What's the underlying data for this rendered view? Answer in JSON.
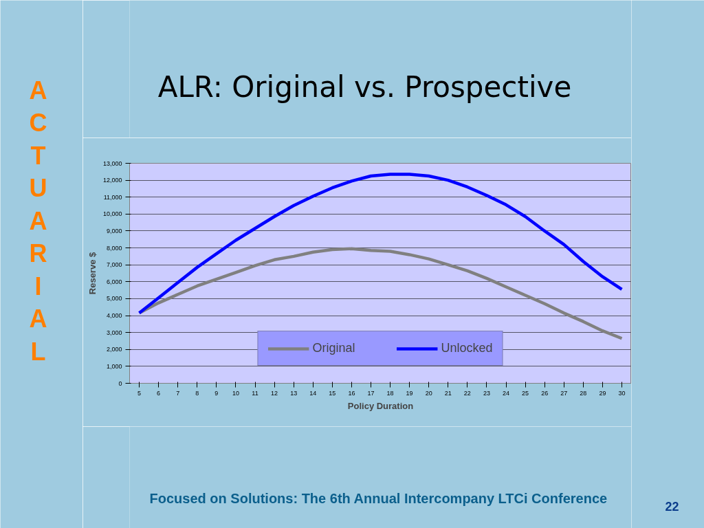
{
  "chart_data": {
    "type": "line",
    "title": "ALR: Original vs. Prospective",
    "xlabel": "Policy Duration",
    "ylabel": "Reserve $",
    "annotations": [
      "ACTUARIAL",
      "Focused on Solutions:  The 6th Annual Intercompany LTCi Conference",
      "22"
    ],
    "categories": [
      "5",
      "6",
      "7",
      "8",
      "9",
      "10",
      "11",
      "12",
      "13",
      "14",
      "15",
      "16",
      "17",
      "18",
      "19",
      "20",
      "21",
      "22",
      "23",
      "24",
      "25",
      "26",
      "27",
      "28",
      "29",
      "30"
    ],
    "series": [
      {
        "name": "Original",
        "color": "#808080",
        "values": [
          4150,
          4750,
          5250,
          5750,
          6150,
          6550,
          6950,
          7300,
          7500,
          7750,
          7900,
          7950,
          7850,
          7800,
          7600,
          7350,
          7000,
          6650,
          6200,
          5700,
          5200,
          4700,
          4150,
          3650,
          3100,
          2650
        ]
      },
      {
        "name": "Unlocked",
        "color": "#0000ff",
        "values": [
          4150,
          5050,
          5950,
          6850,
          7650,
          8450,
          9150,
          9850,
          10500,
          11050,
          11550,
          11950,
          12250,
          12350,
          12350,
          12250,
          12000,
          11600,
          11100,
          10550,
          9850,
          9000,
          8200,
          7200,
          6300,
          5550
        ]
      }
    ],
    "ylim": [
      0,
      13000
    ],
    "yticks": [
      {
        "value": 0,
        "label": "0"
      },
      {
        "value": 1000,
        "label": "1,000"
      },
      {
        "value": 2000,
        "label": "2,000"
      },
      {
        "value": 3000,
        "label": "3,000"
      },
      {
        "value": 4000,
        "label": "4,000"
      },
      {
        "value": 5000,
        "label": "5,000"
      },
      {
        "value": 6000,
        "label": "6,000"
      },
      {
        "value": 7000,
        "label": "7,000"
      },
      {
        "value": 8000,
        "label": "8,000"
      },
      {
        "value": 9000,
        "label": "9,000"
      },
      {
        "value": 10000,
        "label": "10,000"
      },
      {
        "value": 11000,
        "label": "11,000"
      },
      {
        "value": 12000,
        "label": "12,000"
      },
      {
        "value": 13000,
        "label": "13,000"
      }
    ],
    "grid": "y",
    "legend": "bottom",
    "line_style": "solid"
  }
}
